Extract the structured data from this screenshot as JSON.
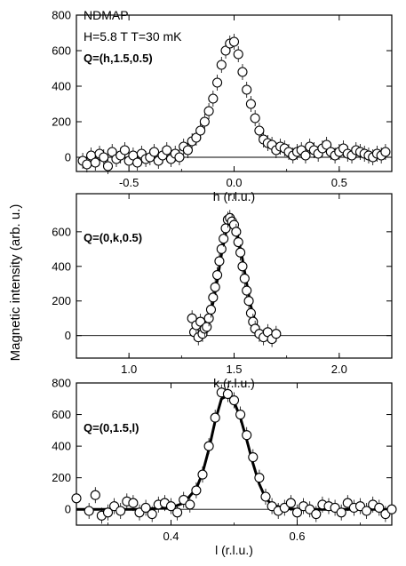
{
  "figure": {
    "ylabel": "Magnetic intensity (arb. u.)"
  },
  "chart_data": [
    {
      "type": "scatter",
      "panel": "h-scan",
      "xlabel": "h (r.l.u.)",
      "ylabel": "Magnetic intensity (arb. u.)",
      "annotations": [
        "NDMAP",
        "H=5.8 T T=30 mK",
        "Q=(h,1.5,0.5)"
      ],
      "xlim": [
        -0.75,
        0.75
      ],
      "ylim": [
        -80,
        800
      ],
      "xticks": [
        -0.5,
        0.0,
        0.5
      ],
      "xtick_labels": [
        "-0.5",
        "0.0",
        "0.5"
      ],
      "yticks": [
        0,
        200,
        400,
        600,
        800
      ],
      "ytick_labels": [
        "0",
        "200",
        "400",
        "600",
        "800"
      ],
      "zero_line": true,
      "grid": false,
      "series": [
        {
          "x": [
            -0.72,
            -0.7,
            -0.68,
            -0.66,
            -0.64,
            -0.62,
            -0.6,
            -0.58,
            -0.56,
            -0.54,
            -0.52,
            -0.5,
            -0.48,
            -0.46,
            -0.44,
            -0.42,
            -0.4,
            -0.38,
            -0.36,
            -0.34,
            -0.32,
            -0.3,
            -0.28,
            -0.26,
            -0.24,
            -0.22,
            -0.2,
            -0.18,
            -0.16,
            -0.14,
            -0.12,
            -0.1,
            -0.08,
            -0.06,
            -0.04,
            -0.02,
            0.0,
            0.02,
            0.04,
            0.06,
            0.08,
            0.1,
            0.12,
            0.14,
            0.16,
            0.18,
            0.2,
            0.22,
            0.24,
            0.26,
            0.28,
            0.3,
            0.32,
            0.34,
            0.36,
            0.38,
            0.4,
            0.42,
            0.44,
            0.46,
            0.48,
            0.5,
            0.52,
            0.54,
            0.56,
            0.58,
            0.6,
            0.62,
            0.64,
            0.66,
            0.68,
            0.7,
            0.72
          ],
          "y": [
            -20,
            -40,
            10,
            -30,
            20,
            0,
            -50,
            30,
            -10,
            10,
            40,
            -20,
            10,
            -30,
            20,
            -10,
            0,
            30,
            -20,
            10,
            40,
            -10,
            20,
            0,
            60,
            40,
            90,
            110,
            150,
            200,
            260,
            330,
            420,
            520,
            600,
            640,
            650,
            580,
            480,
            380,
            300,
            220,
            150,
            100,
            80,
            70,
            40,
            60,
            50,
            30,
            10,
            30,
            40,
            10,
            60,
            40,
            20,
            50,
            70,
            30,
            10,
            30,
            50,
            20,
            10,
            40,
            30,
            20,
            10,
            0,
            20,
            10,
            30
          ]
        }
      ]
    },
    {
      "type": "scatter",
      "panel": "k-scan",
      "xlabel": "k (r.l.u.)",
      "annotations": [
        "Q=(0,k,0.5)"
      ],
      "xlim": [
        0.75,
        2.25
      ],
      "ylim": [
        -130,
        820
      ],
      "xticks": [
        1.0,
        1.5,
        2.0
      ],
      "xtick_labels": [
        "1.0",
        "1.5",
        "2.0"
      ],
      "yticks": [
        0,
        200,
        400,
        600
      ],
      "ytick_labels": [
        "0",
        "200",
        "400",
        "600"
      ],
      "zero_line": true,
      "grid": false,
      "series": [
        {
          "x": [
            1.3,
            1.31,
            1.32,
            1.33,
            1.34,
            1.35,
            1.36,
            1.37,
            1.38,
            1.39,
            1.4,
            1.41,
            1.42,
            1.43,
            1.44,
            1.45,
            1.46,
            1.47,
            1.48,
            1.49,
            1.5,
            1.51,
            1.52,
            1.53,
            1.54,
            1.55,
            1.56,
            1.57,
            1.58,
            1.59,
            1.6,
            1.62,
            1.64,
            1.66,
            1.68,
            1.7
          ],
          "y": [
            100,
            20,
            60,
            -10,
            80,
            10,
            40,
            50,
            100,
            150,
            220,
            280,
            350,
            430,
            500,
            560,
            620,
            670,
            680,
            660,
            640,
            600,
            540,
            480,
            400,
            330,
            260,
            200,
            130,
            80,
            40,
            10,
            -10,
            20,
            -20,
            10
          ]
        },
        {
          "name": "fit",
          "x": [
            1.34,
            1.36,
            1.38,
            1.4,
            1.42,
            1.44,
            1.46,
            1.48,
            1.5,
            1.52,
            1.54,
            1.56,
            1.58,
            1.6,
            1.62,
            1.64,
            1.66
          ],
          "y": [
            20,
            50,
            100,
            190,
            320,
            470,
            590,
            660,
            660,
            560,
            440,
            300,
            170,
            80,
            30,
            10,
            0
          ]
        }
      ]
    },
    {
      "type": "scatter",
      "panel": "l-scan",
      "xlabel": "l (r.l.u.)",
      "annotations": [
        "Q=(0,1.5,l)"
      ],
      "xlim": [
        0.25,
        0.75
      ],
      "ylim": [
        -100,
        800
      ],
      "xticks": [
        0.4,
        0.6
      ],
      "xtick_labels": [
        "0.4",
        "0.6"
      ],
      "yticks": [
        0,
        200,
        400,
        600,
        800
      ],
      "ytick_labels": [
        "0",
        "200",
        "400",
        "600",
        "800"
      ],
      "zero_line": true,
      "grid": false,
      "series": [
        {
          "x": [
            0.25,
            0.27,
            0.28,
            0.29,
            0.3,
            0.31,
            0.32,
            0.33,
            0.34,
            0.35,
            0.36,
            0.37,
            0.38,
            0.39,
            0.4,
            0.41,
            0.42,
            0.43,
            0.44,
            0.45,
            0.46,
            0.47,
            0.48,
            0.49,
            0.5,
            0.51,
            0.52,
            0.53,
            0.54,
            0.55,
            0.56,
            0.57,
            0.58,
            0.59,
            0.6,
            0.61,
            0.62,
            0.63,
            0.64,
            0.65,
            0.66,
            0.67,
            0.68,
            0.69,
            0.7,
            0.71,
            0.72,
            0.73,
            0.74,
            0.75
          ],
          "y": [
            70,
            -10,
            90,
            -40,
            -20,
            20,
            -10,
            50,
            40,
            -20,
            10,
            -30,
            30,
            40,
            20,
            -20,
            60,
            30,
            120,
            220,
            400,
            580,
            740,
            730,
            690,
            600,
            470,
            330,
            200,
            80,
            20,
            -10,
            10,
            40,
            -20,
            20,
            0,
            -30,
            30,
            20,
            10,
            -20,
            40,
            10,
            20,
            -10,
            30,
            10,
            -30,
            0
          ]
        },
        {
          "name": "fit",
          "x": [
            0.25,
            0.3,
            0.35,
            0.4,
            0.42,
            0.44,
            0.45,
            0.46,
            0.47,
            0.48,
            0.49,
            0.5,
            0.51,
            0.52,
            0.53,
            0.54,
            0.55,
            0.56,
            0.58,
            0.6,
            0.65,
            0.7,
            0.75
          ],
          "y": [
            0,
            0,
            0,
            10,
            40,
            130,
            230,
            380,
            560,
            700,
            720,
            680,
            580,
            440,
            290,
            160,
            70,
            30,
            5,
            0,
            0,
            0,
            0
          ]
        }
      ]
    }
  ]
}
